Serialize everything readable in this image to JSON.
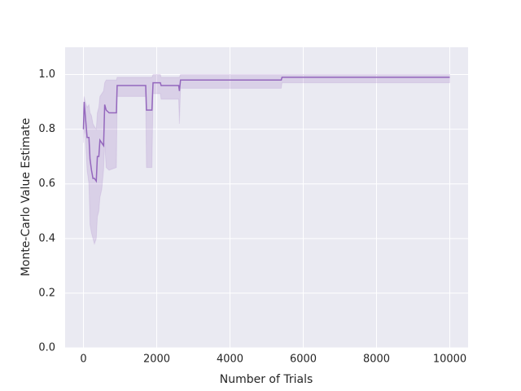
{
  "chart_data": {
    "type": "line",
    "xlabel": "Number of Trials",
    "ylabel": "Monte-Carlo Value Estimate",
    "x": [
      0,
      20,
      50,
      100,
      150,
      180,
      220,
      260,
      300,
      350,
      380,
      420,
      450,
      500,
      550,
      580,
      620,
      700,
      900,
      920,
      1700,
      1720,
      1870,
      1900,
      2100,
      2120,
      2600,
      2620,
      2650,
      5400,
      5420,
      10000
    ],
    "series": [
      {
        "color": "#9467bd",
        "values": [
          0.8,
          0.9,
          0.85,
          0.77,
          0.77,
          0.69,
          0.65,
          0.62,
          0.62,
          0.61,
          0.7,
          0.7,
          0.76,
          0.75,
          0.74,
          0.89,
          0.87,
          0.86,
          0.86,
          0.96,
          0.96,
          0.87,
          0.87,
          0.97,
          0.97,
          0.96,
          0.96,
          0.94,
          0.98,
          0.98,
          0.99,
          0.99
        ],
        "lower": [
          0.75,
          0.8,
          0.78,
          0.65,
          0.6,
          0.45,
          0.42,
          0.4,
          0.38,
          0.4,
          0.48,
          0.5,
          0.55,
          0.58,
          0.65,
          0.75,
          0.66,
          0.65,
          0.66,
          0.92,
          0.92,
          0.66,
          0.66,
          0.93,
          0.93,
          0.91,
          0.91,
          0.82,
          0.95,
          0.95,
          0.97,
          0.97
        ],
        "upper": [
          0.88,
          0.92,
          0.9,
          0.88,
          0.89,
          0.86,
          0.85,
          0.82,
          0.81,
          0.8,
          0.86,
          0.88,
          0.92,
          0.93,
          0.94,
          0.97,
          0.98,
          0.98,
          0.98,
          0.99,
          0.99,
          0.99,
          0.99,
          1.0,
          1.0,
          0.99,
          0.99,
          0.99,
          1.0,
          1.0,
          1.0,
          1.0
        ]
      }
    ],
    "xlim": [
      -500,
      10500
    ],
    "xticks": [
      0,
      2000,
      4000,
      6000,
      8000,
      10000
    ],
    "ylim": [
      0,
      1.1
    ],
    "yticks": [
      {
        "value": 0,
        "label": "0.0"
      },
      0.2,
      0.4,
      0.6,
      0.8,
      {
        "value": 1,
        "label": "1.0"
      }
    ],
    "grid": true
  }
}
